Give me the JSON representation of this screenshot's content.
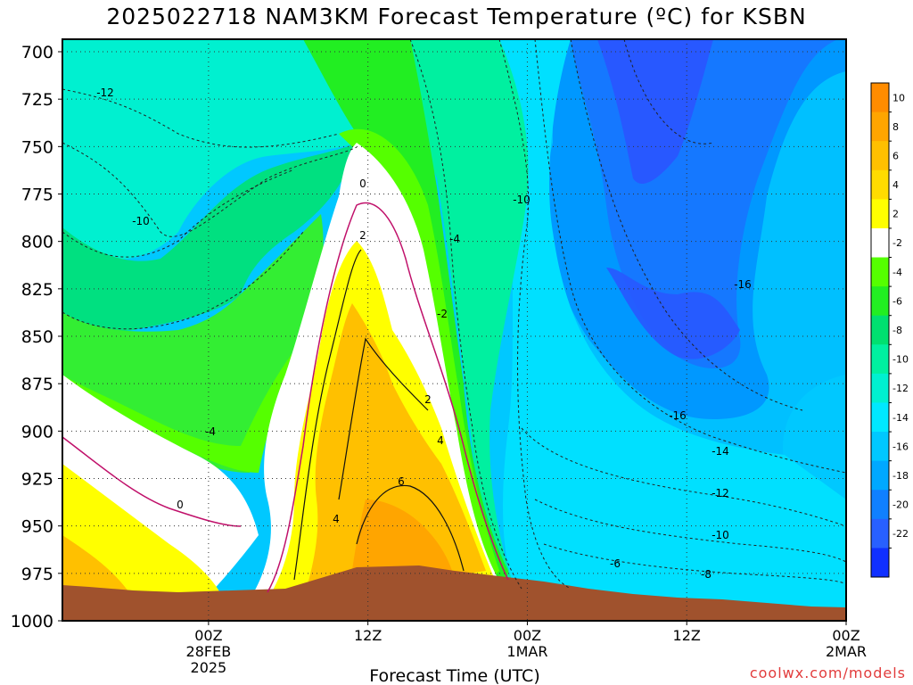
{
  "title": "2025022718 NAM3KM Forecast Temperature (ºC) for KSBN",
  "watermark": "coolwx.com/models",
  "chart_data": {
    "type": "heatmap",
    "title": "2025022718 NAM3KM Forecast Temperature (ºC) for KSBN",
    "xlabel": "Forecast Time (UTC)",
    "ylabel": "",
    "x_range_hours": [
      -5,
      54
    ],
    "y_ticks": [
      700,
      725,
      750,
      775,
      800,
      825,
      850,
      875,
      900,
      925,
      950,
      975,
      1000
    ],
    "ylim": [
      700,
      1000
    ],
    "x_ticks": [
      {
        "hour": 6,
        "lines": [
          "00Z",
          "28FEB",
          "2025"
        ]
      },
      {
        "hour": 18,
        "lines": [
          "12Z"
        ]
      },
      {
        "hour": 30,
        "lines": [
          "00Z",
          "1MAR"
        ]
      },
      {
        "hour": 42,
        "lines": [
          "12Z"
        ]
      },
      {
        "hour": 54,
        "lines": [
          "00Z",
          "2MAR"
        ]
      }
    ],
    "grid": true,
    "colorbar": {
      "position": "right",
      "levels": [
        {
          "label": "10",
          "color": "#ff8c00"
        },
        {
          "label": "8",
          "color": "#ffa500"
        },
        {
          "label": "6",
          "color": "#ffc000"
        },
        {
          "label": "4",
          "color": "#ffdc00"
        },
        {
          "label": "2",
          "color": "#ffff00"
        },
        {
          "label": "-2",
          "color": "#ffffff"
        },
        {
          "label": "-4",
          "color": "#55ff00"
        },
        {
          "label": "-6",
          "color": "#22ee22"
        },
        {
          "label": "-8",
          "color": "#00e070"
        },
        {
          "label": "-10",
          "color": "#00f0a0"
        },
        {
          "label": "-12",
          "color": "#00f0d0"
        },
        {
          "label": "-14",
          "color": "#00e8ff"
        },
        {
          "label": "-16",
          "color": "#00c8ff"
        },
        {
          "label": "-18",
          "color": "#00a8ff"
        },
        {
          "label": "-20",
          "color": "#1080ff"
        },
        {
          "label": "-22",
          "color": "#2860ff"
        },
        {
          "label": "",
          "color": "#1030ff"
        }
      ]
    },
    "contour_labels": [
      "-12",
      "-10",
      "-10",
      "-4",
      "0",
      "2",
      "-2",
      "2",
      "4",
      "-4",
      "0",
      "6",
      "4",
      "-16",
      "-16",
      "-14",
      "-12",
      "-10",
      "-8",
      "-6"
    ],
    "terrain_color": "#a0522d"
  }
}
